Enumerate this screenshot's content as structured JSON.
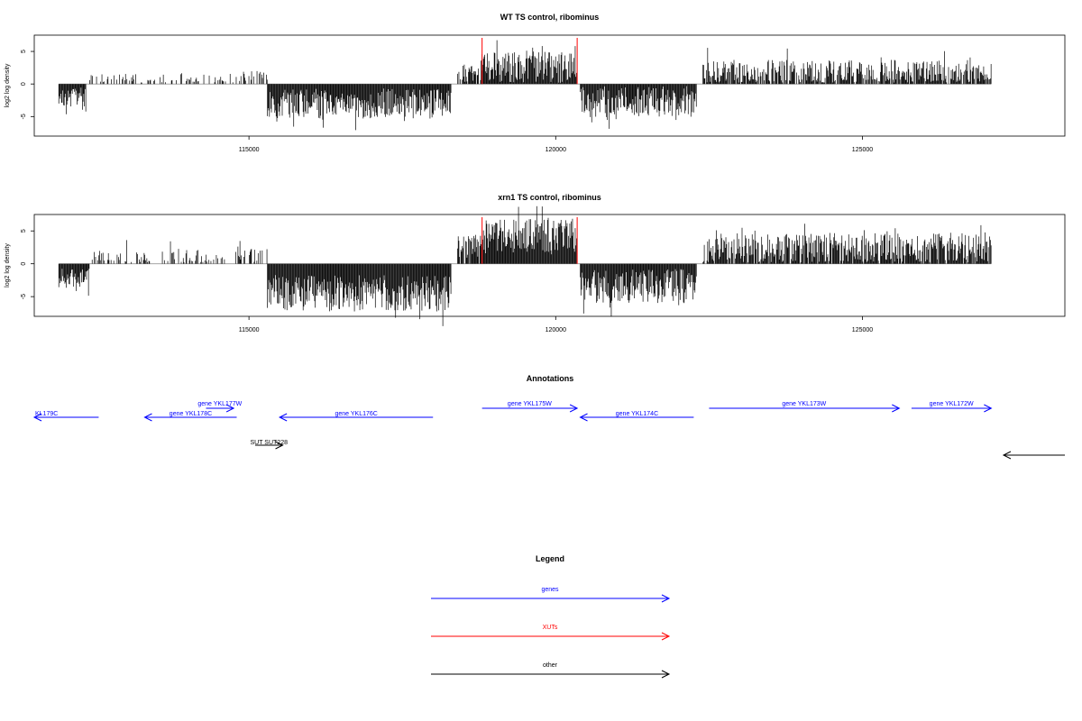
{
  "colors": {
    "gene": "#0000ff",
    "xut": "#ff0000",
    "other": "#000000",
    "bars": "#000000",
    "baseline": "#999999"
  },
  "chart_data": [
    {
      "type": "bar",
      "title": "WT TS control, ribominus",
      "xlabel": "",
      "ylabel": "log2 log density",
      "xlim": [
        111500,
        128300
      ],
      "ylim": [
        -8,
        7.5
      ],
      "xticks": [
        115000,
        120000,
        125000
      ],
      "xtick_labels": [
        "115000",
        "120000",
        "125000"
      ],
      "yticks": [
        -5,
        0,
        5
      ],
      "ytick_labels": [
        "-5",
        "0",
        "5"
      ],
      "red_markers": [
        118800,
        120350
      ],
      "segments": [
        {
          "start": 111900,
          "end": 112350,
          "sign": -1,
          "mean": 2.0,
          "amp": 1.5,
          "density": 1.0
        },
        {
          "start": 112350,
          "end": 114900,
          "sign": 1,
          "mean": 0.6,
          "amp": 1.0,
          "density": 0.3
        },
        {
          "start": 114900,
          "end": 115300,
          "sign": 1,
          "mean": 1.3,
          "amp": 0.8,
          "density": 0.4
        },
        {
          "start": 115300,
          "end": 118300,
          "sign": -1,
          "mean": 3.0,
          "amp": 2.3,
          "density": 1.0
        },
        {
          "start": 118400,
          "end": 118800,
          "sign": 1,
          "mean": 1.6,
          "amp": 1.3,
          "density": 0.8
        },
        {
          "start": 118800,
          "end": 120350,
          "sign": 1,
          "mean": 2.4,
          "amp": 2.6,
          "density": 1.0
        },
        {
          "start": 120400,
          "end": 122300,
          "sign": -1,
          "mean": 2.7,
          "amp": 2.4,
          "density": 1.0
        },
        {
          "start": 122400,
          "end": 127100,
          "sign": 1,
          "mean": 1.6,
          "amp": 2.1,
          "density": 0.85
        }
      ]
    },
    {
      "type": "bar",
      "title": "xrn1 TS control, ribominus",
      "xlabel": "",
      "ylabel": "log2 log density",
      "xlim": [
        111500,
        128300
      ],
      "ylim": [
        -8,
        7.5
      ],
      "xticks": [
        115000,
        120000,
        125000
      ],
      "xtick_labels": [
        "115000",
        "120000",
        "125000"
      ],
      "yticks": [
        -5,
        0,
        5
      ],
      "ytick_labels": [
        "-5",
        "0",
        "5"
      ],
      "red_markers": [
        118800,
        120350
      ],
      "segments": [
        {
          "start": 111900,
          "end": 112400,
          "sign": -1,
          "mean": 2.2,
          "amp": 1.5,
          "density": 1.0
        },
        {
          "start": 112400,
          "end": 115300,
          "sign": 1,
          "mean": 0.8,
          "amp": 1.5,
          "density": 0.35
        },
        {
          "start": 115300,
          "end": 118300,
          "sign": -1,
          "mean": 4.5,
          "amp": 2.8,
          "density": 1.0
        },
        {
          "start": 118400,
          "end": 118800,
          "sign": 1,
          "mean": 2.6,
          "amp": 1.8,
          "density": 0.9
        },
        {
          "start": 118800,
          "end": 120350,
          "sign": 1,
          "mean": 4.0,
          "amp": 2.8,
          "density": 1.0
        },
        {
          "start": 120400,
          "end": 122300,
          "sign": -1,
          "mean": 3.4,
          "amp": 2.6,
          "density": 1.0
        },
        {
          "start": 122400,
          "end": 127100,
          "sign": 1,
          "mean": 2.3,
          "amp": 2.4,
          "density": 0.9
        }
      ]
    }
  ],
  "annotations": {
    "title": "Annotations",
    "items": [
      {
        "label": "KL179C",
        "kind": "gene",
        "start": 111500,
        "end": 112550,
        "dir": "left",
        "row": 1
      },
      {
        "label": "gene YKL178C",
        "kind": "gene",
        "start": 113300,
        "end": 114800,
        "dir": "left",
        "row": 1
      },
      {
        "label": "gene YKL177W",
        "kind": "gene",
        "start": 114300,
        "end": 114750,
        "dir": "right",
        "row": 0
      },
      {
        "label": "gene YKL176C",
        "kind": "gene",
        "start": 115500,
        "end": 118000,
        "dir": "left",
        "row": 1
      },
      {
        "label": "gene YKL175W",
        "kind": "gene",
        "start": 118800,
        "end": 120350,
        "dir": "right",
        "row": 0
      },
      {
        "label": "gene YKL174C",
        "kind": "gene",
        "start": 120400,
        "end": 122250,
        "dir": "left",
        "row": 1
      },
      {
        "label": "gene YKL173W",
        "kind": "gene",
        "start": 122500,
        "end": 125600,
        "dir": "right",
        "row": 0
      },
      {
        "label": "gene YKL172W",
        "kind": "gene",
        "start": 125800,
        "end": 127100,
        "dir": "right",
        "row": 0
      },
      {
        "label": "SUT SUT228",
        "kind": "other",
        "start": 115100,
        "end": 115550,
        "dir": "right",
        "row": 2
      },
      {
        "label": "",
        "kind": "other",
        "start": 127300,
        "end": 128300,
        "dir": "left",
        "row": 3
      }
    ]
  },
  "legend": {
    "title": "Legend",
    "items": [
      {
        "label": "genes",
        "kind": "gene"
      },
      {
        "label": "XUTs",
        "kind": "xut"
      },
      {
        "label": "other",
        "kind": "other"
      }
    ]
  }
}
